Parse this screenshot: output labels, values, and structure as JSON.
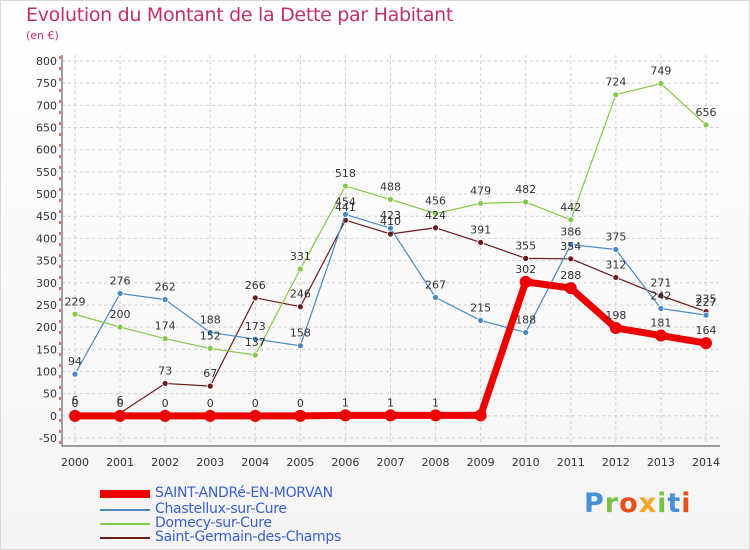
{
  "title": "Evolution du Montant de la Dette par Habitant",
  "subtitle": "(en €)",
  "logo": {
    "letters": [
      "P",
      "r",
      "o",
      "x",
      "i",
      "t",
      "i"
    ],
    "colors": [
      "#4a90d9",
      "#7bc043",
      "#e94e1b",
      "#f5a623",
      "#7bc043",
      "#4a90d9",
      "#e94e1b"
    ]
  },
  "chart_data": {
    "type": "line",
    "x": [
      "2000",
      "2001",
      "2002",
      "2003",
      "2004",
      "2005",
      "2006",
      "2007",
      "2008",
      "2009",
      "2010",
      "2011",
      "2012",
      "2013",
      "2014"
    ],
    "ylim": [
      -50,
      800
    ],
    "yticks": [
      "-50",
      "0",
      "50",
      "100",
      "150",
      "200",
      "250",
      "300",
      "350",
      "400",
      "450",
      "500",
      "550",
      "600",
      "650",
      "700",
      "750",
      "800"
    ],
    "grid": true,
    "legend": "bottom-left",
    "series": [
      {
        "name": "Saint-Germain-des-Champs",
        "color": "#6b1a1a",
        "width": 1.2,
        "marker": 3,
        "values": [
          6,
          6,
          73,
          67,
          266,
          246,
          441,
          410,
          424,
          391,
          355,
          354,
          312,
          271,
          235
        ],
        "labels": [
          "6",
          "6",
          "73",
          "67",
          "266",
          "246",
          "441",
          "410",
          "424",
          "391",
          "355",
          "354",
          "312",
          "271",
          "235"
        ]
      },
      {
        "name": "Chastellux-sur-Cure",
        "color": "#4a8ac4",
        "width": 1.2,
        "marker": 3,
        "values": [
          94,
          276,
          262,
          188,
          173,
          158,
          454,
          423,
          267,
          215,
          188,
          386,
          375,
          242,
          227
        ],
        "labels": [
          "94",
          "276",
          "262",
          "188",
          "173",
          "158",
          "454",
          "423",
          "267",
          "215",
          "188",
          "386",
          "375",
          "242",
          "227"
        ]
      },
      {
        "name": "Domecy-sur-Cure",
        "color": "#86c94a",
        "width": 1.2,
        "marker": 3,
        "values": [
          229,
          200,
          174,
          152,
          137,
          331,
          518,
          488,
          456,
          479,
          482,
          442,
          724,
          749,
          656
        ],
        "labels": [
          "229",
          "200",
          "174",
          "152",
          "137",
          "331",
          "518",
          "488",
          "456",
          "479",
          "482",
          "442",
          "724",
          "749",
          "656"
        ]
      },
      {
        "name": "SAINT-ANDRé-EN-MORVAN",
        "color": "#ee0000",
        "width": 7,
        "marker": 6,
        "values": [
          0,
          0,
          0,
          0,
          0,
          0,
          1,
          1,
          1,
          1,
          302,
          288,
          198,
          181,
          164
        ],
        "labels": [
          "0",
          "0",
          "0",
          "0",
          "0",
          "0",
          "1",
          "1",
          "1",
          "",
          "302",
          "288",
          "198",
          "181",
          "164"
        ]
      }
    ]
  },
  "legend_items": [
    {
      "label": "SAINT-ANDRé-EN-MORVAN",
      "color": "#ee0000",
      "thick": 8
    },
    {
      "label": "Chastellux-sur-Cure",
      "color": "#4a8ac4",
      "thick": 2
    },
    {
      "label": "Domecy-sur-Cure",
      "color": "#86c94a",
      "thick": 2
    },
    {
      "label": "Saint-Germain-des-Champs",
      "color": "#6b1a1a",
      "thick": 2
    }
  ]
}
